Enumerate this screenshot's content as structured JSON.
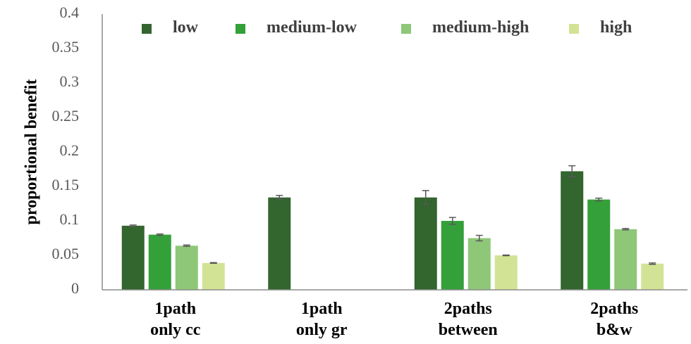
{
  "chart_data": {
    "type": "bar",
    "title": "",
    "xlabel": "",
    "ylabel": "proportional benefit",
    "ylim": [
      0,
      0.4
    ],
    "yticks": [
      "0",
      "0.05",
      "0.1",
      "0.15",
      "0.2",
      "0.25",
      "0.3",
      "0.35",
      "0.4"
    ],
    "grid": false,
    "legend_position": "top",
    "categories": [
      [
        "1path",
        "only cc"
      ],
      [
        "1path",
        "only gr"
      ],
      [
        "2paths",
        "between"
      ],
      [
        "2paths",
        "b&w"
      ]
    ],
    "series": [
      {
        "name": "low",
        "color": "#33652f",
        "values": [
          0.093,
          0.134,
          0.134,
          0.172
        ],
        "errors": [
          0.001,
          0.003,
          0.01,
          0.008
        ]
      },
      {
        "name": "medium-low",
        "color": "#34a039",
        "values": [
          0.08,
          null,
          0.1,
          0.131
        ],
        "errors": [
          0.001,
          null,
          0.005,
          0.002
        ]
      },
      {
        "name": "medium-high",
        "color": "#8ec778",
        "values": [
          0.064,
          null,
          0.075,
          0.088
        ],
        "errors": [
          0.001,
          null,
          0.004,
          0.001
        ]
      },
      {
        "name": "high",
        "color": "#d3e396",
        "values": [
          0.039,
          null,
          0.05,
          0.038
        ],
        "errors": [
          0.0005,
          null,
          0.0005,
          0.001
        ]
      }
    ]
  }
}
